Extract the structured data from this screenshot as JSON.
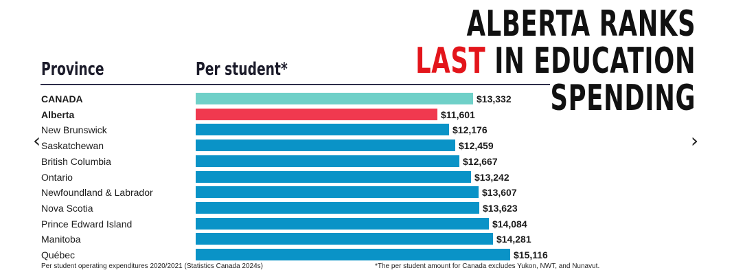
{
  "headline": {
    "line1": "ALBERTA RANKS",
    "line2_red": "LAST",
    "line2_black": " IN EDUCATION",
    "line3": "SPENDING"
  },
  "headers": {
    "province": "Province",
    "per_student": "Per student*"
  },
  "nav": {
    "prev": "‹",
    "next": "›"
  },
  "footnotes": {
    "source": "Per student operating expenditures 2020/2021 (Statistics Canada 2024s)",
    "note": "*The per student amount for Canada excludes Yukon, NWT, and Nunavut."
  },
  "chart_data": {
    "type": "bar",
    "orientation": "horizontal",
    "categories": [
      "CANADA",
      "Alberta",
      "New Brunswick",
      "Saskatchewan",
      "British Columbia",
      "Ontario",
      "Newfoundland & Labrador",
      "Nova Scotia",
      "Prince Edward Island",
      "Manitoba",
      "Québec"
    ],
    "values": [
      13332,
      11601,
      12176,
      12459,
      12667,
      13242,
      13607,
      13623,
      14084,
      14281,
      15116
    ],
    "value_labels": [
      "$13,332",
      "$11,601",
      "$12,176",
      "$12,459",
      "$12,667",
      "$13,242",
      "$13,607",
      "$13,623",
      "$14,084",
      "$14,281",
      "$15,116"
    ],
    "bold_categories": [
      "CANADA",
      "Alberta"
    ],
    "colors": {
      "CANADA": "#6fd0c8",
      "Alberta": "#f0394f",
      "default": "#0a93c7"
    }
  }
}
